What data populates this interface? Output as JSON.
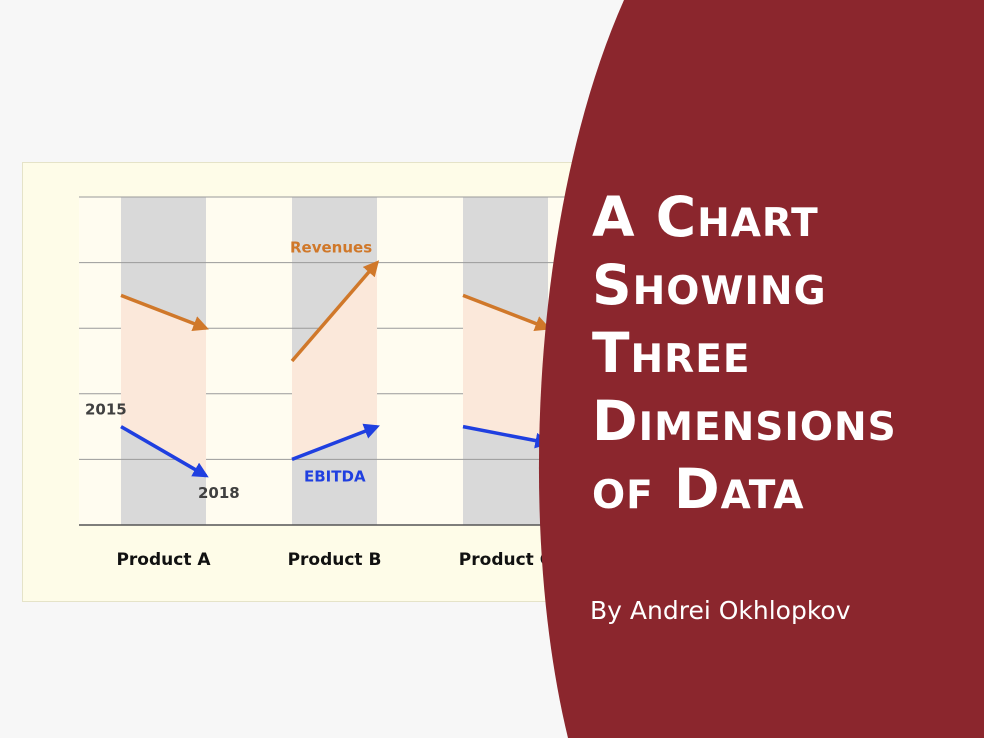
{
  "chart_data": {
    "type": "slope",
    "title": "A Chart Showing Three Dimensions of Data",
    "categories": [
      "Product A",
      "Product B",
      "Product C"
    ],
    "period_labels": {
      "start": "2015",
      "end": "2018"
    },
    "ylim": [
      0,
      5
    ],
    "gridlines": [
      0,
      1,
      2,
      3,
      4,
      5
    ],
    "series": [
      {
        "name": "Revenues",
        "color": "#d0782a",
        "start": [
          3.5,
          2.5,
          3.5
        ],
        "end": [
          3.0,
          4.0,
          3.0
        ]
      },
      {
        "name": "EBITDA",
        "color": "#1f3fe0",
        "start": [
          1.5,
          1.0,
          1.5
        ],
        "end": [
          0.75,
          1.5,
          1.25
        ]
      }
    ],
    "band_color": "#fbe8da",
    "column_shade_color": "#d9d9d9"
  },
  "title": {
    "lines": [
      "A Chart",
      "Showing",
      "Three",
      "Dimensions",
      "of Data"
    ]
  },
  "byline": "By Andrei Okhlopkov",
  "colors": {
    "panel": "#8b262d",
    "background": "#f7f7f7",
    "card": "#fefce8"
  }
}
